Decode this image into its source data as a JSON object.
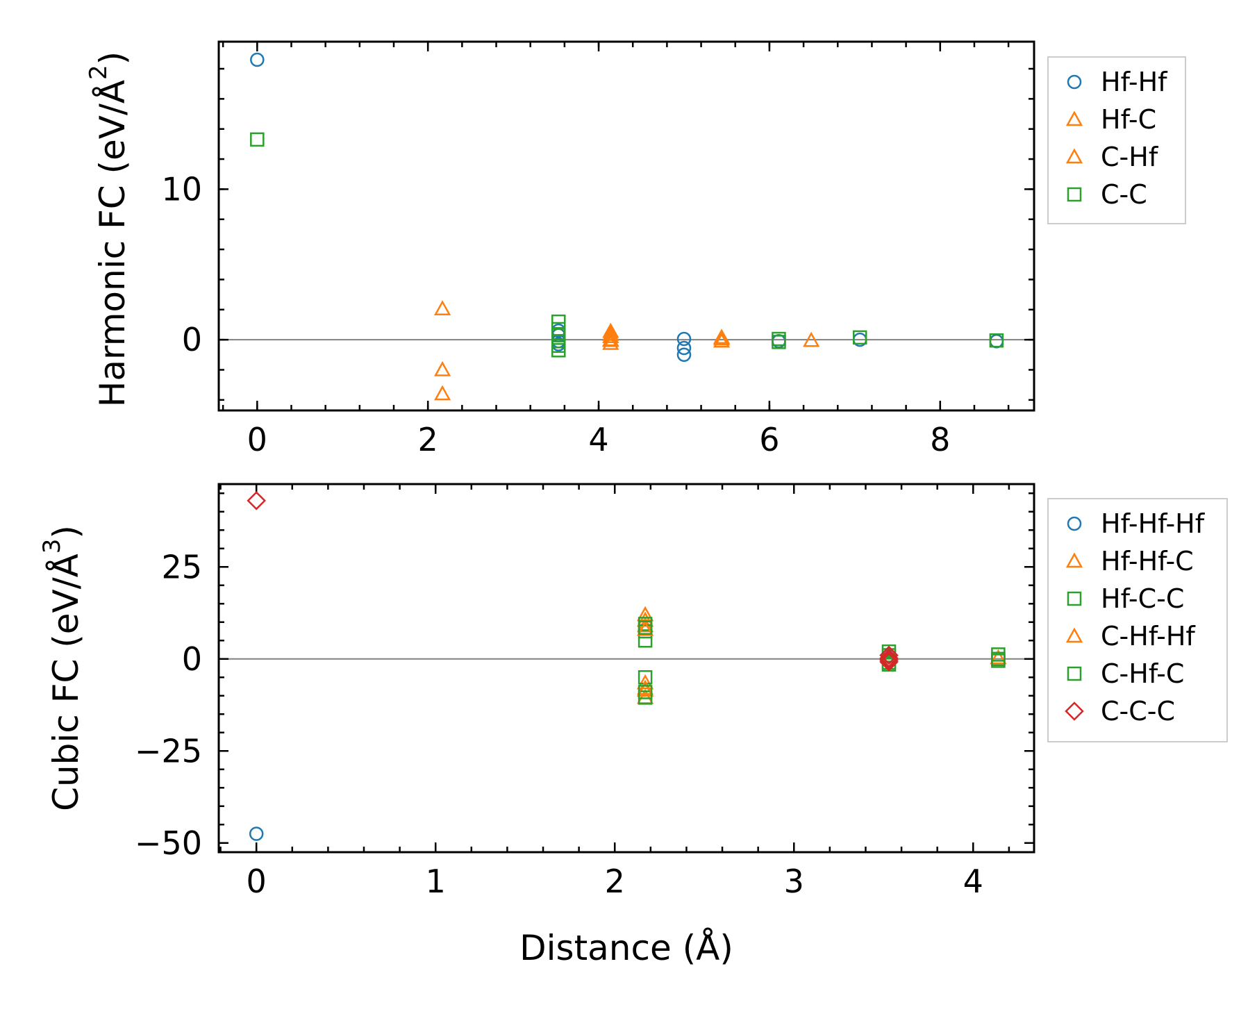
{
  "colors": {
    "hfhf": "#1f77b4",
    "hfc": "#ff7f0e",
    "cc": "#2ca02c",
    "ccc": "#d62728",
    "zero_line": "#808080",
    "frame": "#000000"
  },
  "chart_data": [
    {
      "type": "scatter",
      "id": "harmonic",
      "ylabel_prefix": "Harmonic FC (eV/Å",
      "ylabel_power": "2",
      "ylabel_suffix": ")",
      "xlim": [
        -0.45,
        9.1
      ],
      "ylim": [
        -4.7,
        19.8
      ],
      "x_ticks": [
        0,
        2,
        4,
        6,
        8
      ],
      "x_tick_labels": [
        "0",
        "2",
        "4",
        "6",
        "8"
      ],
      "y_ticks": [
        0,
        10
      ],
      "y_tick_labels": [
        "0",
        "10"
      ],
      "x_minor_step": 0.4,
      "y_minor_step": 2,
      "legend_position": "outside-right-top",
      "series": [
        {
          "name": "Hf-Hf",
          "marker": "circle",
          "color": "#1f77b4",
          "x": [
            0.0,
            3.53,
            3.53,
            3.53,
            3.53,
            5.0,
            5.0,
            5.0,
            6.11,
            7.06,
            8.66
          ],
          "y": [
            18.6,
            0.6,
            0.3,
            -0.1,
            -0.3,
            0.05,
            -0.55,
            -1.0,
            -0.1,
            0.0,
            -0.1
          ]
        },
        {
          "name": "Hf-C",
          "marker": "triangle",
          "color": "#ff7f0e",
          "x": [
            2.17,
            2.17,
            2.17,
            4.14,
            4.14,
            4.14,
            4.14,
            5.44,
            5.44,
            6.49
          ],
          "y": [
            2.05,
            -2.0,
            -3.6,
            0.55,
            0.2,
            -0.05,
            -0.25,
            0.15,
            -0.1,
            -0.05
          ]
        },
        {
          "name": "C-Hf",
          "marker": "triangle",
          "color": "#ff7f0e",
          "x": [
            4.14,
            4.14,
            5.44
          ],
          "y": [
            0.35,
            0.0,
            0.05
          ]
        },
        {
          "name": "C-C",
          "marker": "square",
          "color": "#2ca02c",
          "x": [
            0.0,
            3.53,
            3.53,
            3.53,
            3.53,
            3.53,
            3.53,
            6.11,
            6.11,
            7.06,
            8.66
          ],
          "y": [
            13.3,
            1.2,
            0.7,
            0.3,
            -0.1,
            -0.4,
            -0.7,
            0.05,
            -0.15,
            0.15,
            -0.05
          ]
        }
      ]
    },
    {
      "type": "scatter",
      "id": "cubic",
      "ylabel_prefix": "Cubic FC (eV/Å",
      "ylabel_power": "3",
      "ylabel_suffix": ")",
      "xaxis_label": "Distance (Å)",
      "xlim": [
        -0.21,
        4.34
      ],
      "ylim": [
        -52.5,
        47.5
      ],
      "x_ticks": [
        0,
        1,
        2,
        3,
        4
      ],
      "x_tick_labels": [
        "0",
        "1",
        "2",
        "3",
        "4"
      ],
      "y_ticks": [
        -50,
        -25,
        0,
        25
      ],
      "y_tick_labels": [
        "−50",
        "−25",
        "0",
        "25"
      ],
      "x_minor_step": 0.2,
      "y_minor_step": 5,
      "legend_position": "outside-right-top",
      "series": [
        {
          "name": "Hf-Hf-Hf",
          "marker": "circle",
          "color": "#1f77b4",
          "x": [
            0.0,
            3.53,
            3.53
          ],
          "y": [
            -47.5,
            0.8,
            -0.6
          ]
        },
        {
          "name": "Hf-Hf-C",
          "marker": "triangle",
          "color": "#ff7f0e",
          "x": [
            2.17,
            2.17,
            2.17,
            2.17,
            2.17,
            2.17,
            4.14
          ],
          "y": [
            12.0,
            10.5,
            9.0,
            -6.5,
            -8.5,
            -10.5,
            0.3
          ]
        },
        {
          "name": "Hf-C-C",
          "marker": "square",
          "color": "#2ca02c",
          "x": [
            2.17,
            2.17,
            2.17,
            2.17,
            2.17,
            3.53,
            3.53,
            4.14,
            4.14
          ],
          "y": [
            9.5,
            7.5,
            5.0,
            -5.0,
            -10.5,
            2.0,
            -1.5,
            1.2,
            -0.5
          ]
        },
        {
          "name": "C-Hf-Hf",
          "marker": "triangle",
          "color": "#ff7f0e",
          "x": [
            2.17,
            2.17,
            3.53
          ],
          "y": [
            8.0,
            -8.0,
            0.5
          ]
        },
        {
          "name": "C-Hf-C",
          "marker": "square",
          "color": "#2ca02c",
          "x": [
            2.17,
            2.17,
            3.53,
            3.53,
            4.14
          ],
          "y": [
            8.5,
            -9.0,
            1.0,
            -1.0,
            0.0
          ]
        },
        {
          "name": "C-C-C",
          "marker": "diamond",
          "color": "#d62728",
          "x": [
            0.0,
            3.53,
            3.53,
            3.53,
            3.53
          ],
          "y": [
            43.0,
            1.0,
            0.2,
            -0.3,
            -0.8
          ]
        }
      ]
    }
  ]
}
